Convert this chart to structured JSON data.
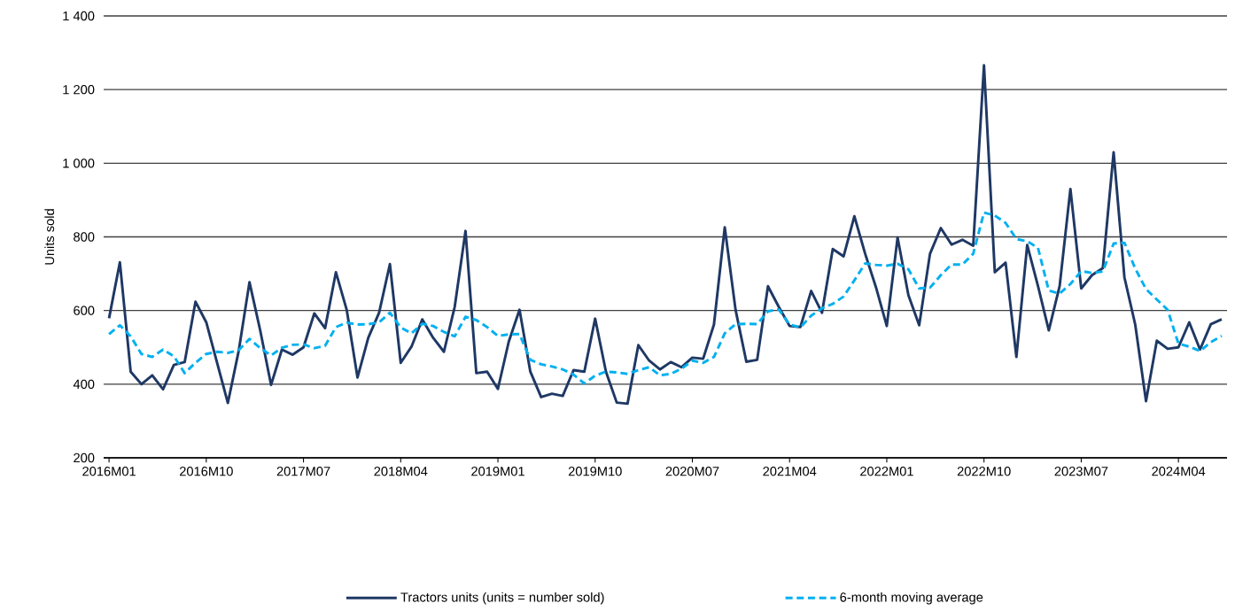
{
  "chart_data": {
    "type": "line",
    "ylabel": "Units sold",
    "categories": [
      "2016M01",
      null,
      null,
      null,
      null,
      null,
      null,
      null,
      null,
      "2016M10",
      null,
      null,
      null,
      null,
      null,
      null,
      null,
      null,
      "2017M07",
      null,
      null,
      null,
      null,
      null,
      null,
      null,
      null,
      "2018M04",
      null,
      null,
      null,
      null,
      null,
      null,
      null,
      null,
      "2019M01",
      null,
      null,
      null,
      null,
      null,
      null,
      null,
      null,
      "2019M10",
      null,
      null,
      null,
      null,
      null,
      null,
      null,
      null,
      "2020M07",
      null,
      null,
      null,
      null,
      null,
      null,
      null,
      null,
      "2021M04",
      null,
      null,
      null,
      null,
      null,
      null,
      null,
      null,
      "2022M01",
      null,
      null,
      null,
      null,
      null,
      null,
      null,
      null,
      "2022M10",
      null,
      null,
      null,
      null,
      null,
      null,
      null,
      null,
      "2023M07",
      null,
      null,
      null,
      null,
      null,
      null,
      null,
      null,
      "2024M04",
      null,
      null,
      null,
      null
    ],
    "series": [
      {
        "name": "Tractors units (units = number sold)",
        "color": "#1f3864",
        "line_style": "solid",
        "values": [
          579,
          731,
          434,
          400,
          424,
          386,
          452,
          460,
          624,
          568,
          458,
          349,
          490,
          677,
          545,
          398,
          494,
          480,
          500,
          592,
          552,
          704,
          602,
          418,
          526,
          594,
          726,
          458,
          502,
          576,
          526,
          488,
          610,
          816,
          430,
          434,
          387,
          515,
          602,
          434,
          365,
          374,
          368,
          438,
          434,
          578,
          434,
          350,
          347,
          506,
          464,
          440,
          460,
          446,
          472,
          469,
          562,
          826,
          602,
          461,
          466,
          666,
          610,
          558,
          555,
          653,
          594,
          767,
          747,
          856,
          754,
          663,
          558,
          798,
          642,
          560,
          754,
          824,
          779,
          792,
          776,
          1266,
          704,
          730,
          474,
          778,
          666,
          546,
          666,
          930,
          660,
          696,
          715,
          1030,
          690,
          562,
          354,
          518,
          496,
          500,
          568,
          494,
          563,
          576
        ]
      },
      {
        "name": "6-month moving average",
        "color": "#00b0f0",
        "line_style": "dashed",
        "values": [
          536,
          560,
          530,
          482,
          474,
          494,
          476,
          430,
          458,
          482,
          488,
          485,
          492,
          523,
          498,
          478,
          499,
          507,
          508,
          498,
          504,
          555,
          567,
          562,
          563,
          568,
          594,
          554,
          538,
          564,
          558,
          542,
          530,
          583,
          574,
          555,
          531,
          535,
          536,
          466,
          454,
          448,
          440,
          426,
          402,
          423,
          434,
          432,
          428,
          438,
          446,
          424,
          428,
          442,
          464,
          458,
          474,
          538,
          563,
          564,
          563,
          598,
          603,
          562,
          554,
          586,
          606,
          618,
          638,
          682,
          728,
          724,
          722,
          727,
          712,
          660,
          662,
          696,
          725,
          725,
          754,
          866,
          858,
          838,
          794,
          788,
          770,
          654,
          646,
          672,
          707,
          702,
          706,
          782,
          784,
          714,
          658,
          630,
          602,
          510,
          502,
          490,
          514,
          531
        ]
      }
    ],
    "ylim": [
      200,
      1400
    ],
    "yticks": [
      200,
      400,
      600,
      800,
      {
        "value": 1000,
        "label": "1 000"
      },
      {
        "value": 1200,
        "label": "1 200"
      },
      {
        "value": 1400,
        "label": "1 400"
      }
    ],
    "grid": "y",
    "legend": "bottom"
  }
}
